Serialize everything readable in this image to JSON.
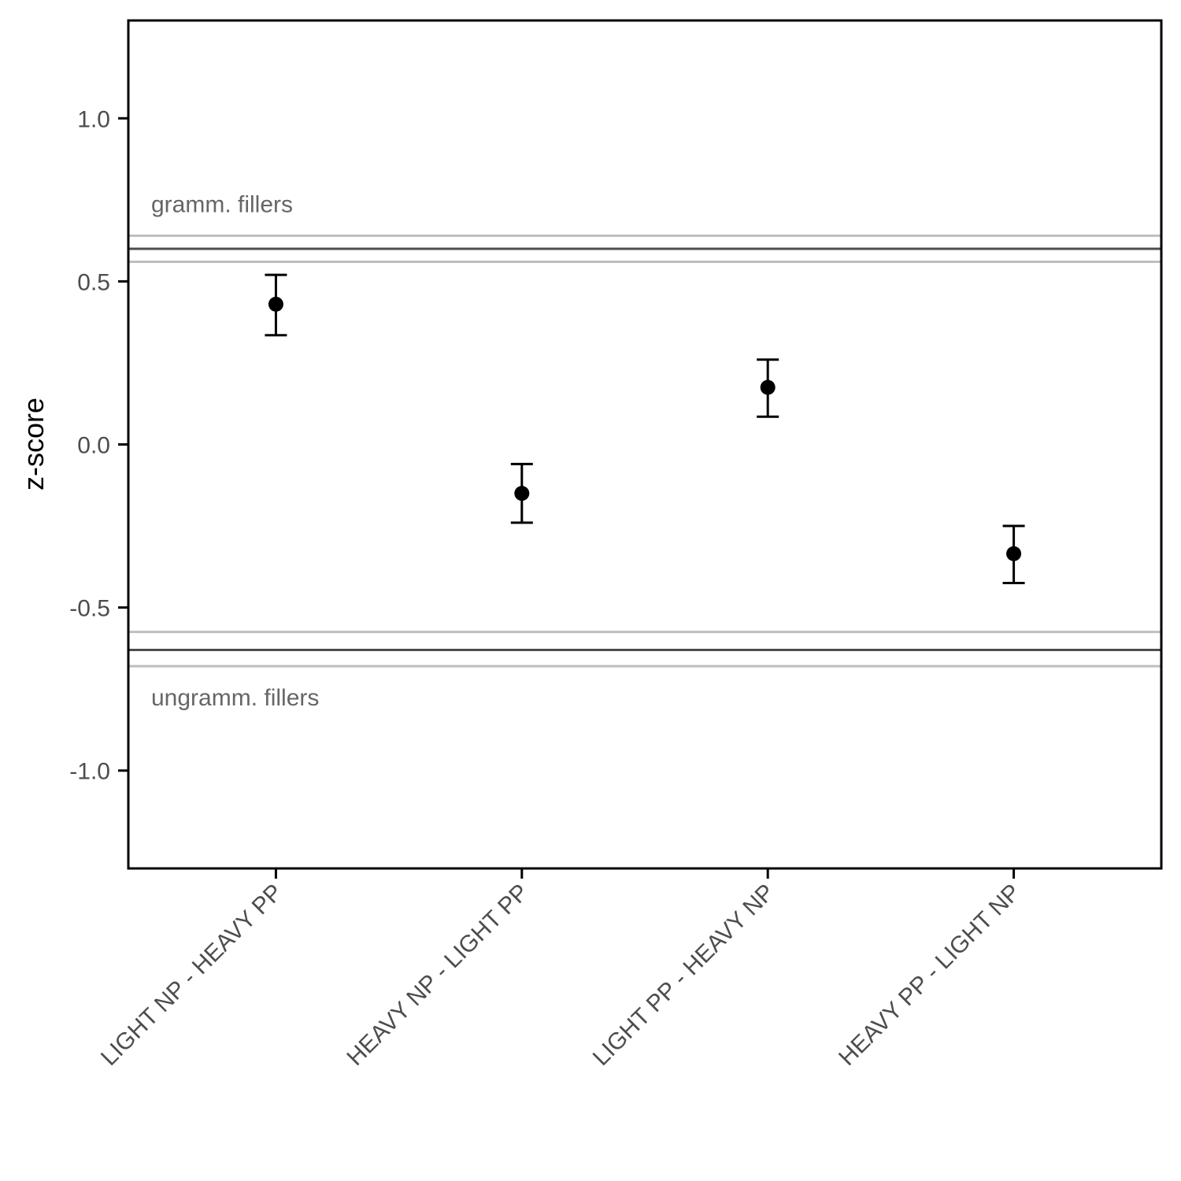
{
  "chart_data": {
    "type": "scatter",
    "xlabel": "",
    "ylabel": "z-score",
    "ylim": [
      -1.3,
      1.3
    ],
    "yticks": [
      1.0,
      0.5,
      0.0,
      -0.5,
      -1.0
    ],
    "ytick_labels": [
      "1.0",
      "0.5",
      "0.0",
      "-0.5",
      "-1.0"
    ],
    "categories": [
      "LIGHT NP - HEAVY PP",
      "HEAVY NP - LIGHT PP",
      "LIGHT PP - HEAVY NP",
      "HEAVY PP - LIGHT NP"
    ],
    "values": [
      0.43,
      -0.15,
      0.175,
      -0.335
    ],
    "error_low": [
      0.335,
      -0.24,
      0.085,
      -0.425
    ],
    "error_high": [
      0.52,
      -0.06,
      0.26,
      -0.25
    ],
    "grid": false,
    "reference_bands": [
      {
        "label": "gramm. fillers",
        "mean": 0.6,
        "low": 0.56,
        "high": 0.64,
        "label_position": "above"
      },
      {
        "label": "ungramm. fillers",
        "mean": -0.63,
        "low": -0.68,
        "high": -0.575,
        "label_position": "below"
      }
    ],
    "colors": {
      "points": "#000000",
      "band_mean": "#4d4d4d",
      "band_edge": "#bebebe",
      "frame": "#000000"
    }
  }
}
